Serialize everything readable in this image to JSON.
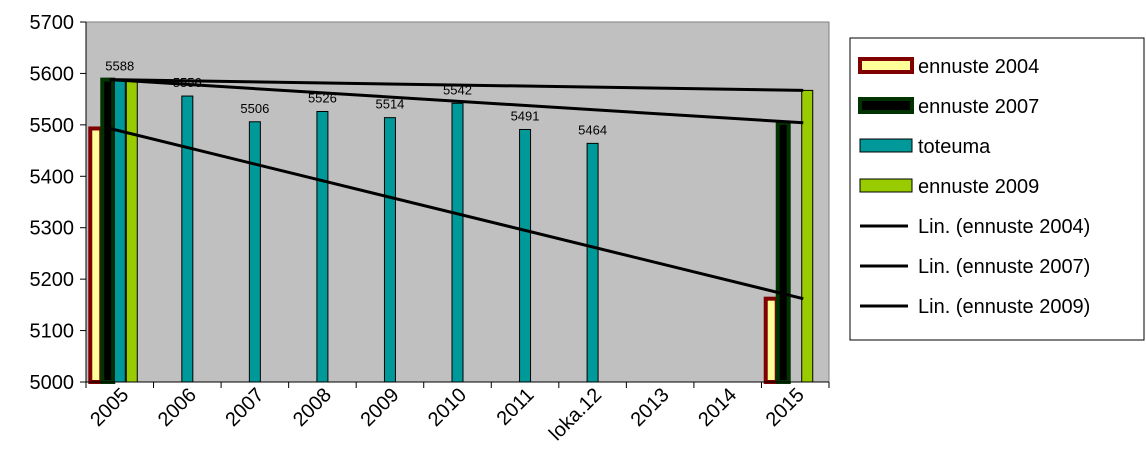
{
  "chart_data": {
    "type": "bar",
    "categories": [
      "2005",
      "2006",
      "2007",
      "2008",
      "2009",
      "2010",
      "2011",
      "loka.12",
      "2013",
      "2014",
      "2015"
    ],
    "ylim": [
      5000,
      5700
    ],
    "yticks": [
      5000,
      5100,
      5200,
      5300,
      5400,
      5500,
      5600,
      5700
    ],
    "grid": false,
    "legend_position": "right",
    "series": [
      {
        "name": "ennuste 2004",
        "kind": "bar",
        "fill": "#FFFF99",
        "stroke": "#800000",
        "values": [
          5493,
          null,
          null,
          null,
          null,
          null,
          null,
          null,
          null,
          null,
          5162
        ]
      },
      {
        "name": "ennuste 2007",
        "kind": "bar",
        "fill": "#000000",
        "stroke": "#003300",
        "values": [
          5588,
          null,
          null,
          null,
          null,
          null,
          null,
          null,
          null,
          null,
          5504
        ]
      },
      {
        "name": "toteuma",
        "kind": "bar",
        "fill": "#009999",
        "stroke": "#000000",
        "values": [
          5588,
          5556,
          5506,
          5526,
          5514,
          5542,
          5491,
          5464,
          null,
          null,
          null
        ],
        "data_labels": [
          "5588",
          "5556",
          "5506",
          "5526",
          "5514",
          "5542",
          "5491",
          "5464",
          "",
          "",
          ""
        ]
      },
      {
        "name": "ennuste 2009",
        "kind": "bar",
        "fill": "#99CC00",
        "stroke": "#000000",
        "values": [
          5588,
          null,
          null,
          null,
          null,
          null,
          null,
          null,
          null,
          null,
          5567
        ]
      },
      {
        "name": "Lin. (ennuste 2004)",
        "kind": "trendline",
        "color": "#000000",
        "points": [
          [
            0,
            5493
          ],
          [
            10,
            5162
          ]
        ]
      },
      {
        "name": "Lin. (ennuste 2007)",
        "kind": "trendline",
        "color": "#000000",
        "points": [
          [
            0,
            5588
          ],
          [
            10,
            5504
          ]
        ]
      },
      {
        "name": "Lin. (ennuste 2009)",
        "kind": "trendline",
        "color": "#000000",
        "points": [
          [
            0,
            5588
          ],
          [
            10,
            5567
          ]
        ]
      }
    ]
  }
}
